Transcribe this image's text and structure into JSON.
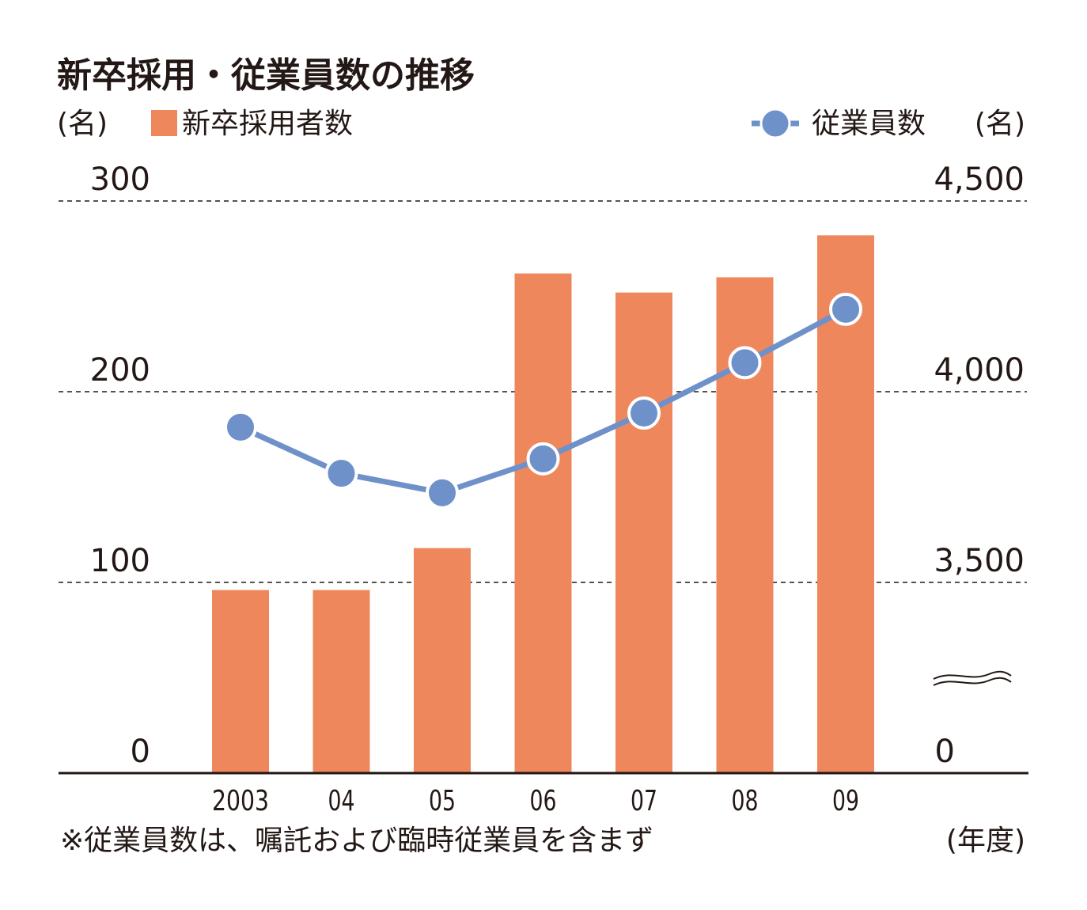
{
  "chart_data": {
    "type": "bar",
    "title": "新卒採用・従業員数の推移",
    "categories": [
      "2003",
      "04",
      "05",
      "06",
      "07",
      "08",
      "09"
    ],
    "xlabel": "(年度)",
    "left_axis": {
      "unit": "(名)",
      "ylim": [
        0,
        300
      ],
      "ticks": [
        "0",
        "100",
        "200",
        "300"
      ],
      "tick_values": [
        0,
        100,
        200,
        300
      ]
    },
    "right_axis": {
      "unit": "(名)",
      "ylim": [
        3000,
        4500
      ],
      "axis_break": true,
      "ticks": [
        "0",
        "3,500",
        "4,000",
        "4,500"
      ],
      "tick_values": [
        3000,
        3500,
        4000,
        4500
      ]
    },
    "series": [
      {
        "name": "新卒採用者数",
        "type": "bar",
        "axis": "left",
        "color": "#ef875d",
        "values": [
          96,
          96,
          118,
          262,
          252,
          260,
          282
        ]
      },
      {
        "name": "従業員数",
        "type": "line",
        "axis": "right",
        "color": "#6f91c9",
        "values": [
          3907,
          3786,
          3735,
          3824,
          3944,
          4076,
          4216
        ]
      }
    ],
    "grid": "dashed",
    "legend": "top",
    "note": "※従業員数は、嘱託および臨時従業員を含まず"
  }
}
